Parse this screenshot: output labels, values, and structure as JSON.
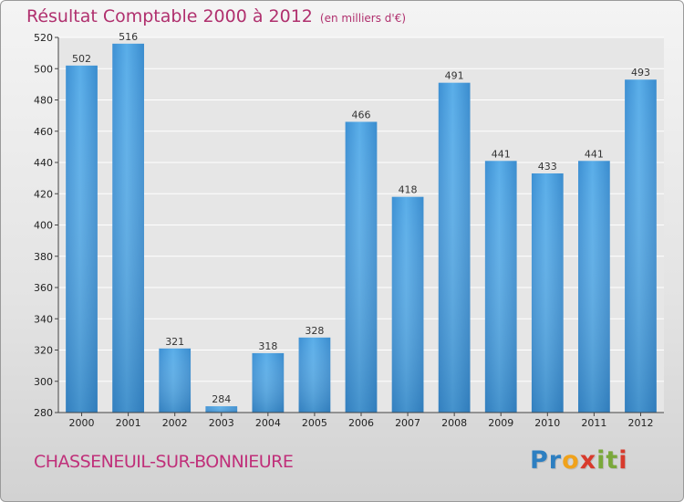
{
  "title": "Résultat Comptable 2000 à 2012",
  "subtitle": "(en milliers d'€)",
  "city": "CHASSENEUIL-SUR-BONNIEURE",
  "brand": {
    "letters": [
      "P",
      "r",
      "o",
      "x",
      "i",
      "t",
      "i"
    ],
    "colors": [
      "#2d7fc1",
      "#2d7fc1",
      "#f0a21b",
      "#d83a2c",
      "#7aa83a",
      "#7aa83a",
      "#d83a2c"
    ]
  },
  "colors": {
    "bar": "#4d9fdf",
    "title": "#b0306e",
    "city": "#c0307a"
  },
  "chart_data": {
    "type": "bar",
    "categories": [
      "2000",
      "2001",
      "2002",
      "2003",
      "2004",
      "2005",
      "2006",
      "2007",
      "2008",
      "2009",
      "2010",
      "2011",
      "2012"
    ],
    "values": [
      502,
      516,
      321,
      284,
      318,
      328,
      466,
      418,
      491,
      441,
      433,
      441,
      493
    ],
    "ylim": [
      280,
      520
    ],
    "yticks": [
      280,
      300,
      320,
      340,
      360,
      380,
      400,
      420,
      440,
      460,
      480,
      500,
      520
    ],
    "grid": true
  }
}
